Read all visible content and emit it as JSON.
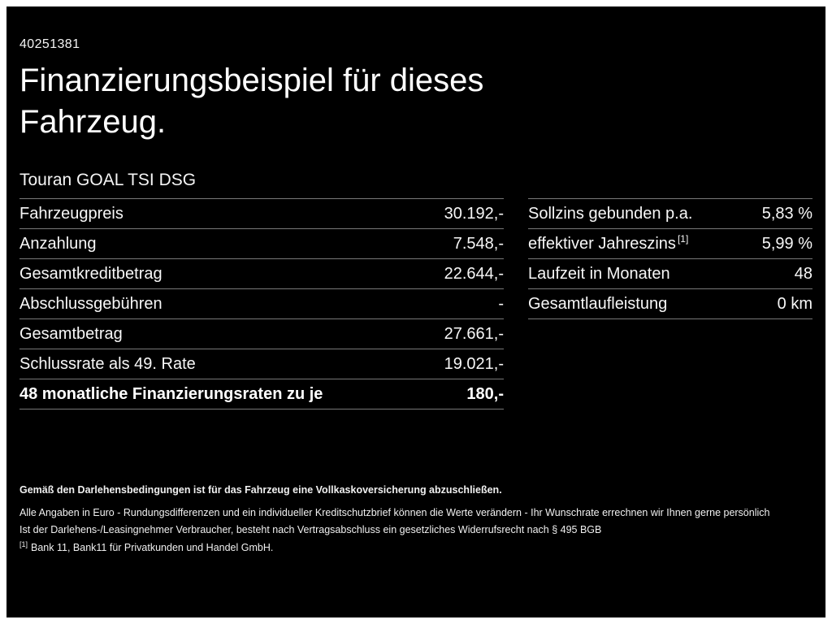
{
  "header": {
    "id_number": "40251381",
    "title_line1": "Finanzierungsbeispiel für dieses",
    "title_line2": "Fahrzeug.",
    "vehicle_model": "Touran GOAL TSI DSG"
  },
  "financing_table": {
    "rows": [
      {
        "label": "Fahrzeugpreis",
        "value": "30.192,-"
      },
      {
        "label": "Anzahlung",
        "value": "7.548,-"
      },
      {
        "label": "Gesamtkreditbetrag",
        "value": "22.644,-"
      },
      {
        "label": "Abschlussgebühren",
        "value": "-"
      },
      {
        "label": "Gesamtbetrag",
        "value": "27.661,-"
      },
      {
        "label": "Schlussrate als 49. Rate",
        "value": "19.021,-"
      },
      {
        "label": "48 monatliche Finanzierungsraten zu je",
        "value": "180,-"
      }
    ]
  },
  "terms_table": {
    "rows": [
      {
        "label": "Sollzins gebunden p.a.",
        "value": "5,83 %"
      },
      {
        "label": "effektiver Jahreszins",
        "footnote": "[1]",
        "value": "5,99 %"
      },
      {
        "label": "Laufzeit in Monaten",
        "value": "48"
      },
      {
        "label": "Gesamtlaufleistung",
        "value": "0 km"
      }
    ]
  },
  "footer": {
    "insurance_note": "Gemäß den Darlehensbedingungen ist für das Fahrzeug eine Vollkaskoversicherung abzuschließen.",
    "disclaimer_line1": "Alle Angaben in Euro - Rundungsdifferenzen und ein individueller Kreditschutzbrief können die Werte verändern - Ihr Wunschrate errechnen wir Ihnen gerne persönlich",
    "disclaimer_line2": "Ist der Darlehens-/Leasingnehmer Verbraucher, besteht nach Vertragsabschluss ein gesetzliches Widerrufsrecht nach § 495 BGB",
    "footnote_marker": "[1]",
    "footnote_text": "Bank 11, Bank11 für Privatkunden und Handel GmbH."
  },
  "colors": {
    "background": "#000000",
    "text": "#ffffff",
    "divider": "#787878",
    "frame_border": "#ffffff"
  }
}
